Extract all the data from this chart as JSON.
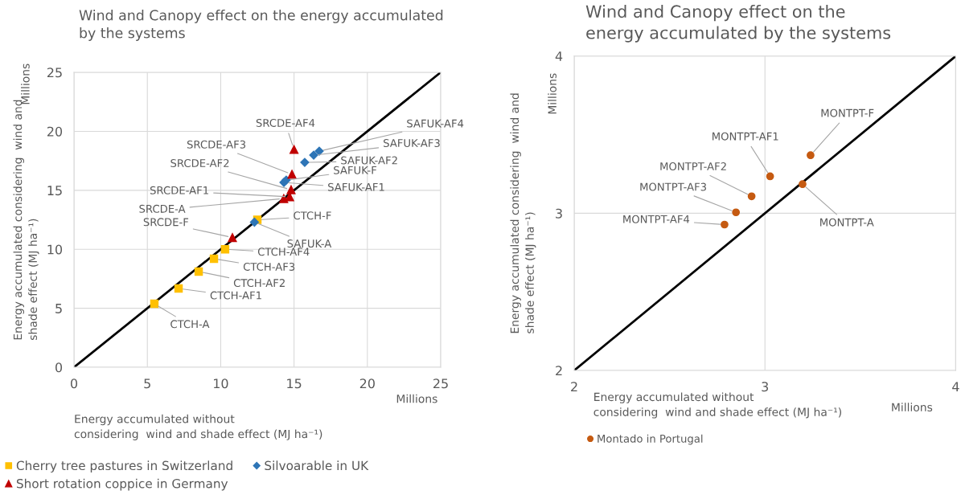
{
  "chart_data": [
    {
      "type": "scatter",
      "title": "Wind and Canopy effect on the energy accumulated\nby the systems",
      "xlabel": "Energy accumulated without\nconsidering  wind and shade effect (MJ ha⁻¹)",
      "ylabel": "Energy accumulated considering  wind and\nshade effect (MJ ha⁻¹)",
      "xlim": [
        0,
        25
      ],
      "ylim": [
        0,
        25
      ],
      "xticks": [
        0,
        5,
        10,
        15,
        20,
        25
      ],
      "yticks": [
        0,
        5,
        10,
        15,
        20,
        25
      ],
      "grid": true,
      "legend": "bottom",
      "series": [
        {
          "name": "Cherry tree pastures in Switzerland",
          "color": "#ffc000",
          "marker": "square",
          "x": [
            5.48,
            7.13,
            8.5,
            9.54,
            10.3,
            12.5
          ],
          "values": [
            5.38,
            6.68,
            8.11,
            9.2,
            10.0,
            12.5
          ]
        },
        {
          "name": "Silvoarable in UK",
          "color": "#2e75b6",
          "marker": "diamond",
          "x": [
            12.3,
            14.31,
            14.47,
            15.73,
            16.34,
            16.72
          ],
          "values": [
            12.3,
            15.67,
            15.87,
            17.37,
            17.98,
            18.32
          ]
        },
        {
          "name": "Short rotation coppice in Germany",
          "color": "#c00000",
          "marker": "triangle",
          "x": [
            10.8,
            14.3,
            14.7,
            14.8,
            14.86,
            15.0
          ],
          "values": [
            11.0,
            14.3,
            14.45,
            15.05,
            16.35,
            18.46
          ]
        },
        {
          "type": "line",
          "color": "#000000",
          "marker": "none",
          "x": [
            0,
            25
          ],
          "values": [
            0,
            25
          ]
        }
      ],
      "annotations": [
        {
          "text": "CTCH-A",
          "x": 5.48,
          "y": 5.38
        },
        {
          "text": "CTCH-AF1",
          "x": 7.13,
          "y": 6.68
        },
        {
          "text": "CTCH-AF2",
          "x": 8.5,
          "y": 8.11
        },
        {
          "text": "CTCH-AF3",
          "x": 9.54,
          "y": 9.2
        },
        {
          "text": "CTCH-AF4",
          "x": 10.3,
          "y": 10.0
        },
        {
          "text": "CTCH-F",
          "x": 12.5,
          "y": 12.5
        },
        {
          "text": "SAFUK-A",
          "x": 12.3,
          "y": 12.3
        },
        {
          "text": "SAFUK-AF1",
          "x": 14.31,
          "y": 15.67
        },
        {
          "text": "SAFUK-F",
          "x": 14.47,
          "y": 15.87
        },
        {
          "text": "SAFUK-AF2",
          "x": 15.73,
          "y": 17.37
        },
        {
          "text": "SAFUK-AF3",
          "x": 16.34,
          "y": 17.98
        },
        {
          "text": "SAFUK-AF4",
          "x": 16.72,
          "y": 18.32
        },
        {
          "text": "SRCDE-F",
          "x": 10.8,
          "y": 11.0
        },
        {
          "text": "SRCDE-A",
          "x": 14.3,
          "y": 14.3
        },
        {
          "text": "SRCDE-AF1",
          "x": 14.7,
          "y": 14.45
        },
        {
          "text": "SRCDE-AF2",
          "x": 14.8,
          "y": 15.05
        },
        {
          "text": "SRCDE-AF3",
          "x": 14.86,
          "y": 16.35
        },
        {
          "text": "SRCDE-AF4",
          "x": 15.0,
          "y": 18.46
        },
        "Millions",
        "Millions"
      ]
    },
    {
      "type": "scatter",
      "title": "Wind and Canopy effect on the\nenergy accumulated by the systems",
      "xlabel": "Energy accumulated without\nconsidering  wind and shade effect (MJ ha⁻¹)",
      "ylabel": "Energy accumulated considering  wind and\nshade effect (MJ ha⁻¹)",
      "xlim": [
        2,
        4
      ],
      "ylim": [
        2,
        4
      ],
      "xticks": [
        2,
        3,
        4
      ],
      "yticks": [
        2,
        3,
        4
      ],
      "grid": true,
      "legend": "bottom",
      "series": [
        {
          "name": "Montado in Portugal",
          "color": "#c55a11",
          "marker": "circle",
          "x": [
            3.197,
            3.027,
            2.93,
            2.848,
            2.788,
            3.239
          ],
          "values": [
            3.185,
            3.235,
            3.108,
            3.006,
            2.928,
            3.369
          ]
        },
        {
          "type": "line",
          "color": "#000000",
          "marker": "none",
          "x": [
            2,
            4
          ],
          "values": [
            2,
            4
          ]
        }
      ],
      "annotations": [
        {
          "text": "MONTPT-A",
          "x": 3.197,
          "y": 3.185
        },
        {
          "text": "MONTPT-AF1",
          "x": 3.027,
          "y": 3.235
        },
        {
          "text": "MONTPT-AF2",
          "x": 2.93,
          "y": 3.108
        },
        {
          "text": "MONTPT-AF3",
          "x": 2.848,
          "y": 3.006
        },
        {
          "text": "MONTPT-AF4",
          "x": 2.788,
          "y": 2.928
        },
        {
          "text": "MONTPT-F",
          "x": 3.239,
          "y": 3.369
        },
        "Millions",
        "Millions"
      ]
    }
  ]
}
